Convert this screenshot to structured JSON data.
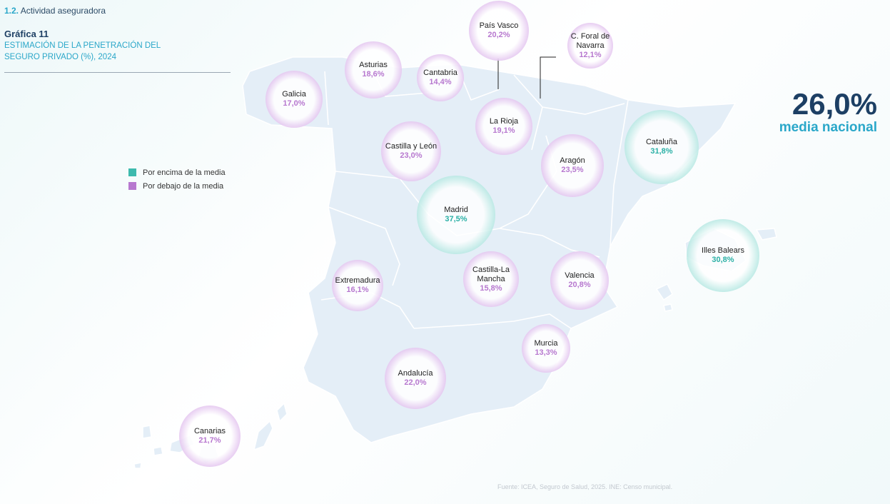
{
  "header": {
    "section_number": "1.2.",
    "section_title": "Actividad aseguradora"
  },
  "chart": {
    "label": "Gráfica 11",
    "title": "ESTIMACIÓN DE LA PENETRACIÓN DEL SEGURO PRIVADO (%), 2024"
  },
  "legend": {
    "above": "Por encima de la media",
    "below": "Por debajo de la media"
  },
  "average": {
    "value": "26,0%",
    "label": "media nacional"
  },
  "colors": {
    "above": "#3ebaae",
    "below": "#b778cf",
    "land": "#e4eef7",
    "border": "#ffffff"
  },
  "source": "Fuente: ICEA, Seguro de Salud, 2025. INE: Censo municipal.",
  "regions": [
    {
      "id": "pais-vasco",
      "name": "País Vasco",
      "value": "20,2%",
      "status": "below"
    },
    {
      "id": "navarra",
      "name": "C. Foral de Navarra",
      "value": "12,1%",
      "status": "below"
    },
    {
      "id": "asturias",
      "name": "Asturias",
      "value": "18,6%",
      "status": "below"
    },
    {
      "id": "cantabria",
      "name": "Cantabria",
      "value": "14,4%",
      "status": "below"
    },
    {
      "id": "galicia",
      "name": "Galicia",
      "value": "17,0%",
      "status": "below"
    },
    {
      "id": "la-rioja",
      "name": "La Rioja",
      "value": "19,1%",
      "status": "below"
    },
    {
      "id": "castilla-leon",
      "name": "Castilla y León",
      "value": "23,0%",
      "status": "below"
    },
    {
      "id": "aragon",
      "name": "Aragón",
      "value": "23,5%",
      "status": "below"
    },
    {
      "id": "cataluna",
      "name": "Cataluña",
      "value": "31,8%",
      "status": "above"
    },
    {
      "id": "madrid",
      "name": "Madrid",
      "value": "37,5%",
      "status": "above"
    },
    {
      "id": "illes-balears",
      "name": "Illes Balears",
      "value": "30,8%",
      "status": "above"
    },
    {
      "id": "extremadura",
      "name": "Extremadura",
      "value": "16,1%",
      "status": "below"
    },
    {
      "id": "castilla-la-mancha",
      "name": "Castilla-La Mancha",
      "value": "15,8%",
      "status": "below"
    },
    {
      "id": "valencia",
      "name": "Valencia",
      "value": "20,8%",
      "status": "below"
    },
    {
      "id": "murcia",
      "name": "Murcia",
      "value": "13,3%",
      "status": "below"
    },
    {
      "id": "andalucia",
      "name": "Andalucía",
      "value": "22,0%",
      "status": "below"
    },
    {
      "id": "canarias",
      "name": "Canarias",
      "value": "21,7%",
      "status": "below"
    }
  ]
}
